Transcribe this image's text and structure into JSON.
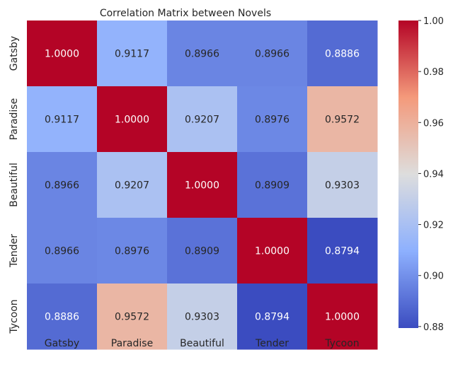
{
  "chart_data": {
    "type": "heatmap",
    "title": "Correlation Matrix between Novels",
    "xlabel": "",
    "ylabel": "",
    "x_categories": [
      "Gatsby",
      "Paradise",
      "Beautiful",
      "Tender",
      "Tycoon"
    ],
    "y_categories": [
      "Gatsby",
      "Paradise",
      "Beautiful",
      "Tender",
      "Tycoon"
    ],
    "values": [
      [
        1.0,
        0.9117,
        0.8966,
        0.8966,
        0.8886
      ],
      [
        0.9117,
        1.0,
        0.9207,
        0.8976,
        0.9572
      ],
      [
        0.8966,
        0.9207,
        1.0,
        0.8909,
        0.9303
      ],
      [
        0.8966,
        0.8976,
        0.8909,
        1.0,
        0.8794
      ],
      [
        0.8886,
        0.9572,
        0.9303,
        0.8794,
        1.0
      ]
    ],
    "cell_labels": [
      [
        "1.0000",
        "0.9117",
        "0.8966",
        "0.8966",
        "0.8886"
      ],
      [
        "0.9117",
        "1.0000",
        "0.9207",
        "0.8976",
        "0.9572"
      ],
      [
        "0.8966",
        "0.9207",
        "1.0000",
        "0.8909",
        "0.9303"
      ],
      [
        "0.8966",
        "0.8976",
        "0.8909",
        "1.0000",
        "0.8794"
      ],
      [
        "0.8886",
        "0.9572",
        "0.9303",
        "0.8794",
        "1.0000"
      ]
    ],
    "colormap": "coolwarm",
    "vmin": 0.8794,
    "vmax": 1.0,
    "colorbar": {
      "ticks": [
        0.88,
        0.9,
        0.92,
        0.94,
        0.96,
        0.98,
        1.0
      ],
      "tick_labels": [
        "0.88",
        "0.90",
        "0.92",
        "0.94",
        "0.96",
        "0.98",
        "1.00"
      ]
    },
    "grid": false,
    "colors": {
      "low": "#3b4cc0",
      "mid": "#dddddd",
      "high": "#b40426",
      "text_dark": "#262626",
      "text_light": "#ffffff"
    }
  }
}
